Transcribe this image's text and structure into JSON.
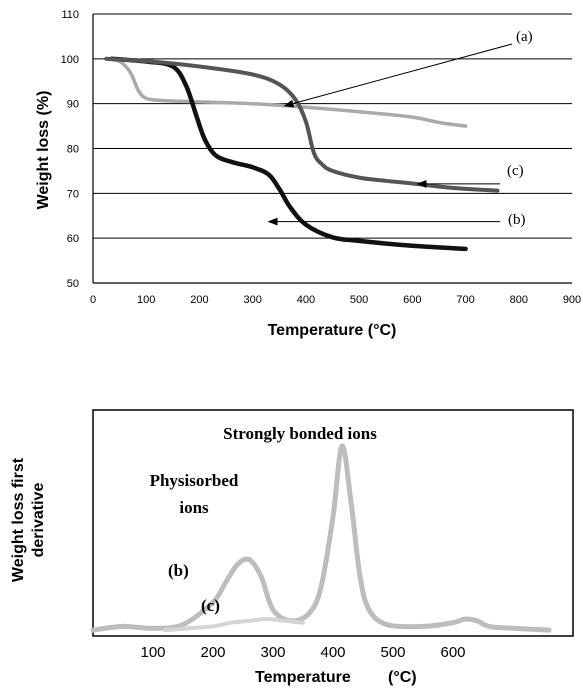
{
  "chart_data": [
    {
      "type": "line",
      "xlabel": "Temperature (°C)",
      "ylabel": "Weight loss (%)",
      "xlim": [
        0,
        900
      ],
      "ylim": [
        50,
        110
      ],
      "x_ticks": [
        "0",
        "100",
        "200",
        "300",
        "400",
        "500",
        "600",
        "700",
        "800",
        "900"
      ],
      "y_ticks": [
        "50",
        "60",
        "70",
        "80",
        "90",
        "100",
        "110"
      ],
      "grid": "horizontal",
      "annotations": [
        "(a)",
        "(b)",
        "(c)"
      ],
      "series": [
        {
          "name": "(a)",
          "color": "#aaaaaa",
          "x": [
            25,
            50,
            70,
            85,
            100,
            130,
            200,
            300,
            400,
            500,
            600,
            650,
            700
          ],
          "y": [
            100,
            99.4,
            97,
            93,
            91.2,
            90.7,
            90.4,
            90,
            89.2,
            88.2,
            87,
            85.8,
            85
          ]
        },
        {
          "name": "(b)",
          "color": "#111111",
          "x": [
            35,
            100,
            150,
            175,
            195,
            210,
            230,
            260,
            300,
            330,
            350,
            370,
            400,
            450,
            500,
            600,
            700
          ],
          "y": [
            100,
            99.4,
            98.3,
            94,
            87,
            82,
            78.5,
            77,
            75.8,
            74.2,
            71,
            67,
            63,
            60.2,
            59.4,
            58.3,
            57.6
          ]
        },
        {
          "name": "(c)",
          "color": "#555555",
          "x": [
            25,
            100,
            200,
            300,
            350,
            380,
            400,
            415,
            430,
            450,
            500,
            550,
            600,
            650,
            700,
            760
          ],
          "y": [
            100,
            99.5,
            98.3,
            96.5,
            94.3,
            91,
            86,
            79,
            76.5,
            75,
            73.5,
            72.8,
            72.2,
            71.5,
            71,
            70.6
          ]
        }
      ]
    },
    {
      "type": "line",
      "xlabel": "Temperature",
      "xlabel_unit": "(°C)",
      "ylabel": "Weight loss first derivative",
      "ylabel_lines": [
        "Weight loss first",
        "derivative"
      ],
      "xlim": [
        0,
        800
      ],
      "ylim": [
        0,
        1
      ],
      "x_ticks": [
        "100",
        "200",
        "300",
        "400",
        "500",
        "600"
      ],
      "annotations": {
        "strong": "Strongly bonded ions",
        "physi_1": "Physisorbed",
        "physi_2": "ions",
        "b": "(b)",
        "c": "(c)"
      },
      "series": [
        {
          "name": "(b)",
          "color": "#bdbdbd",
          "x": [
            0,
            50,
            100,
            150,
            200,
            220,
            240,
            260,
            280,
            300,
            330,
            360,
            380,
            400,
            415,
            430,
            445,
            460,
            490,
            550,
            600,
            620,
            640,
            660,
            700,
            760
          ],
          "y": [
            0.01,
            0.03,
            0.02,
            0.04,
            0.16,
            0.26,
            0.36,
            0.39,
            0.3,
            0.12,
            0.06,
            0.1,
            0.24,
            0.62,
            1.0,
            0.7,
            0.3,
            0.12,
            0.04,
            0.03,
            0.05,
            0.07,
            0.06,
            0.03,
            0.02,
            0.01
          ]
        },
        {
          "name": "(c)",
          "color": "#d4d4d4",
          "x": [
            120,
            160,
            200,
            230,
            260,
            290,
            320,
            350
          ],
          "y": [
            0.01,
            0.02,
            0.03,
            0.05,
            0.06,
            0.07,
            0.06,
            0.05
          ]
        }
      ]
    }
  ]
}
